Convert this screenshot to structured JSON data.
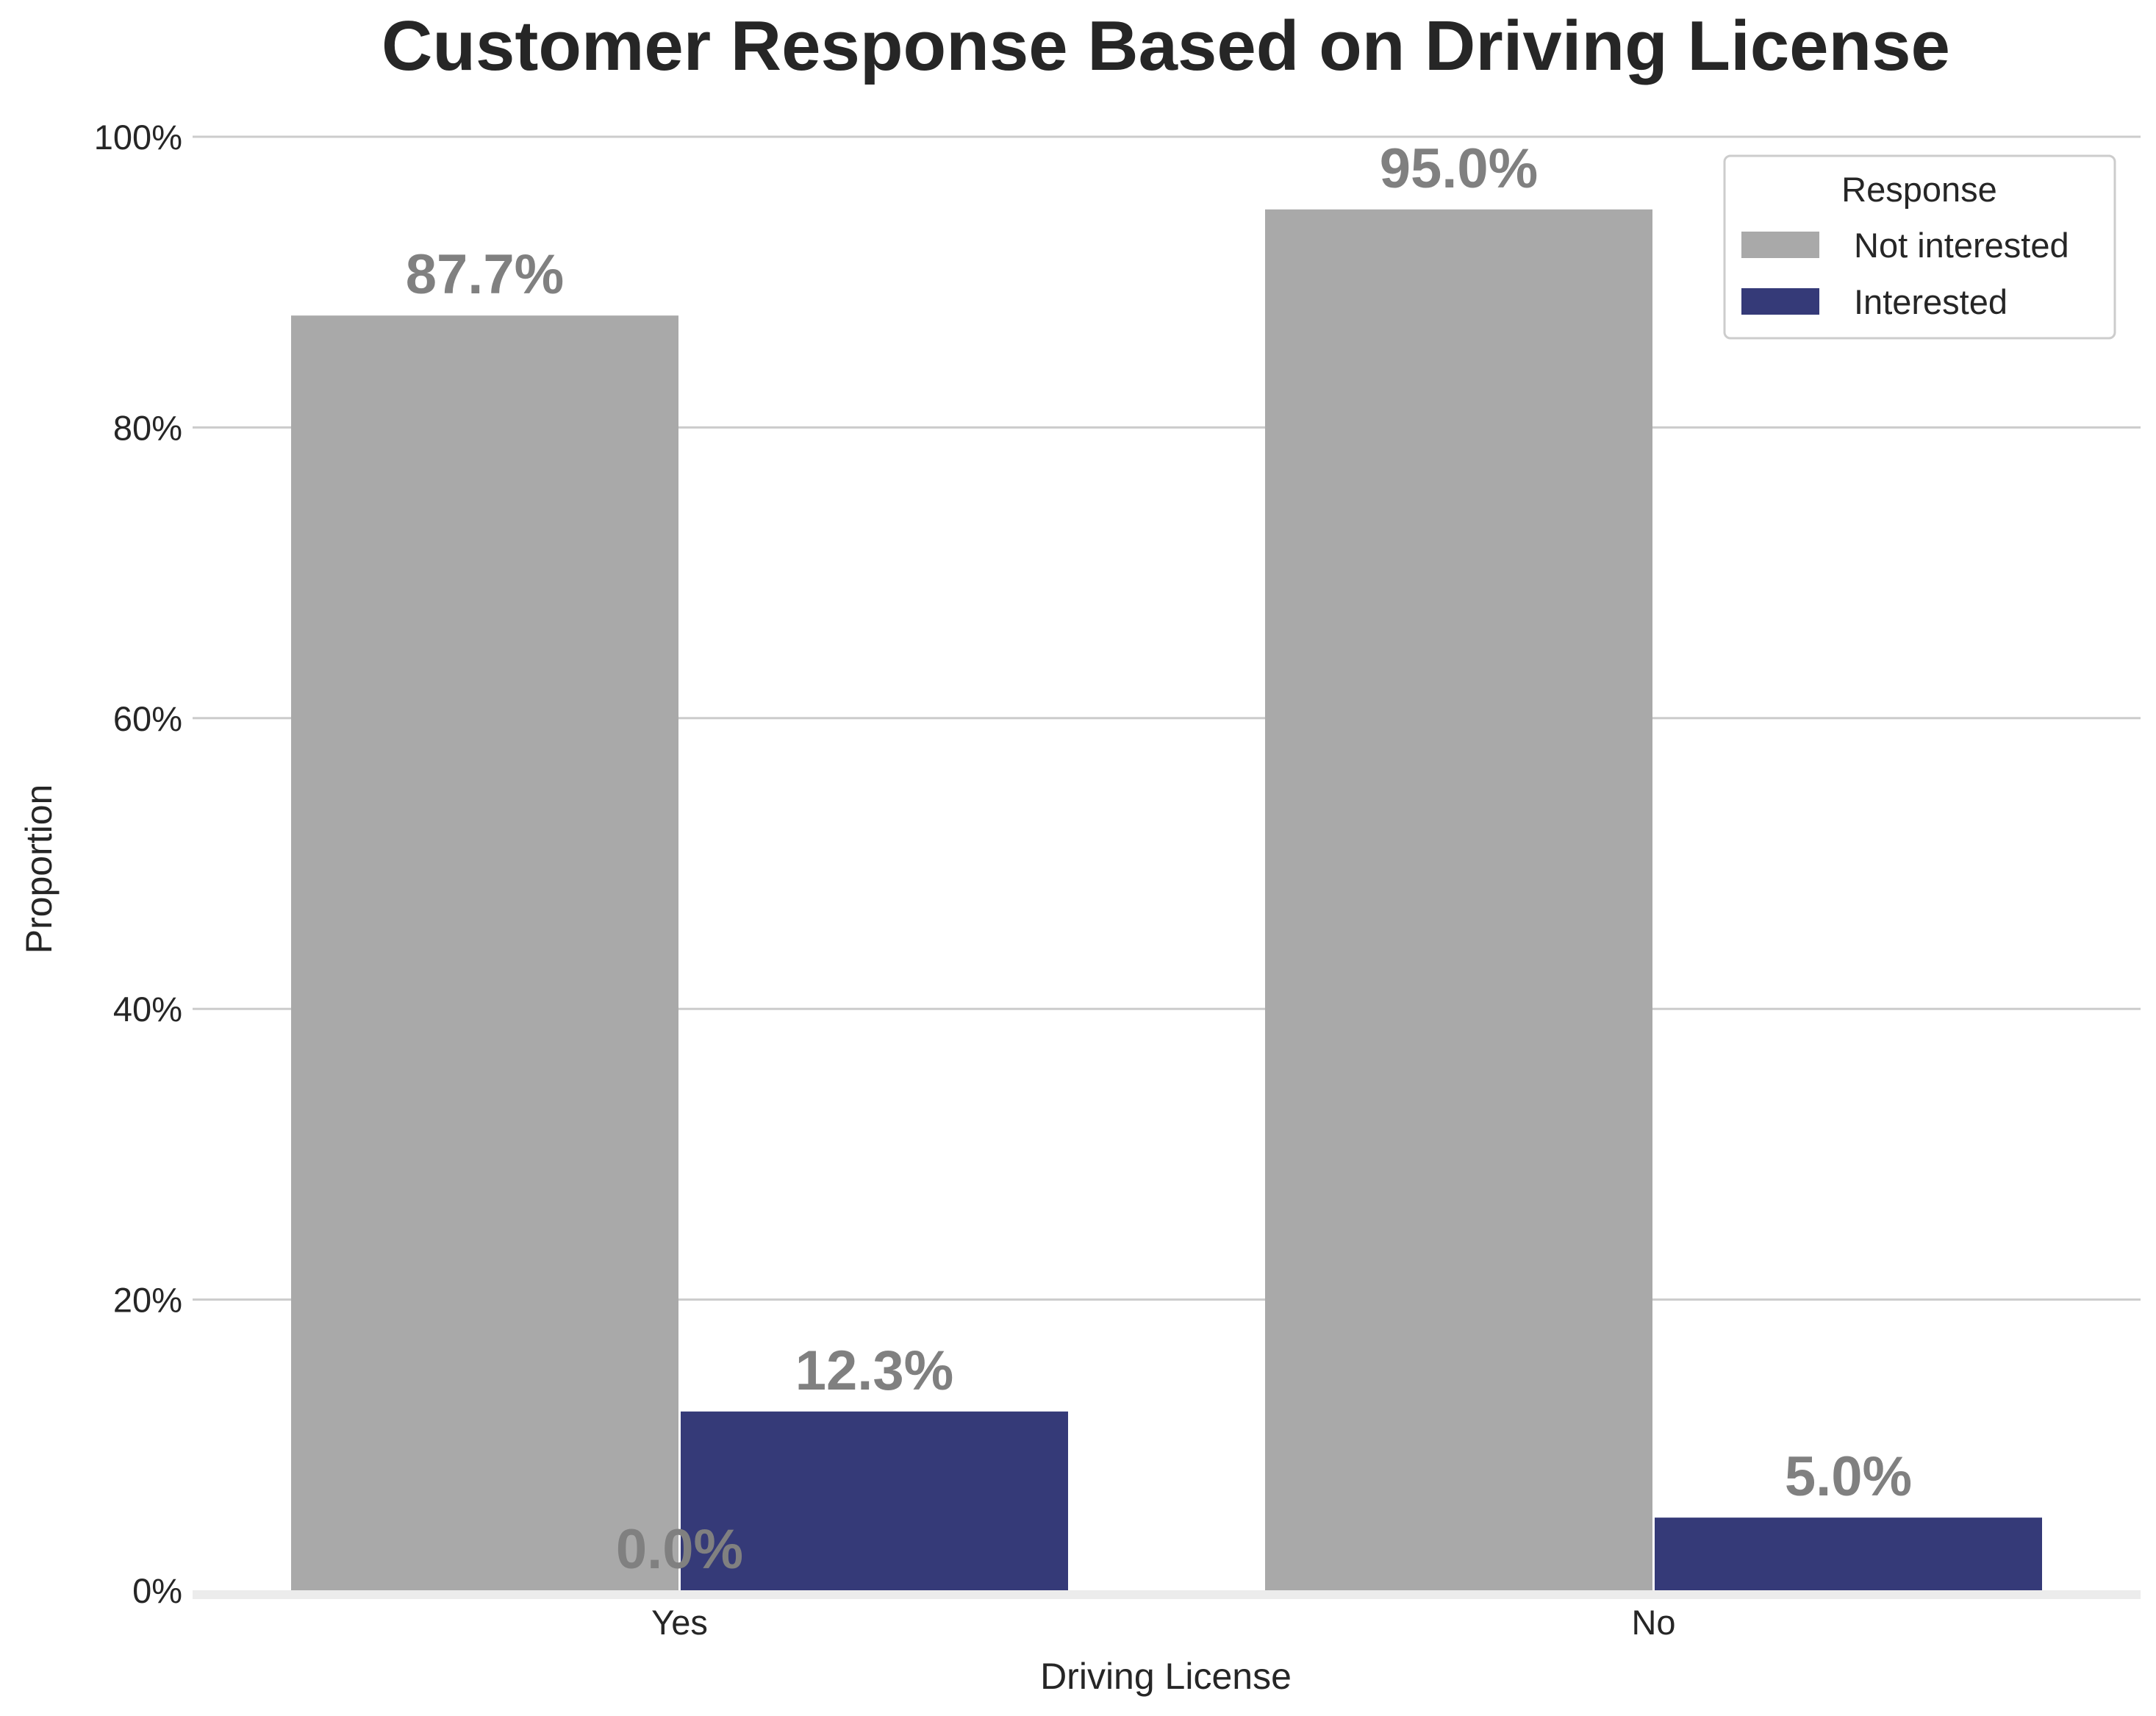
{
  "chart_data": {
    "type": "bar",
    "title": "Customer Response Based on Driving License",
    "xlabel": "Driving License",
    "ylabel": "Proportion",
    "categories": [
      "Yes",
      "No"
    ],
    "series": [
      {
        "name": "Not interested",
        "color": "#a9a9a9",
        "values": [
          87.7,
          95.0
        ],
        "labels": [
          "87.7%",
          "95.0%"
        ]
      },
      {
        "name": "Interested",
        "color": "#353a78",
        "values": [
          12.3,
          5.0
        ],
        "labels": [
          "12.3%",
          "5.0%"
        ]
      }
    ],
    "extra_labels": [
      {
        "text": "0.0%",
        "category": "Yes",
        "value": 0.0
      }
    ],
    "ylim": [
      0,
      100
    ],
    "yticks": [
      0,
      20,
      40,
      60,
      80,
      100
    ],
    "ytick_labels": [
      "0%",
      "20%",
      "40%",
      "60%",
      "80%",
      "100%"
    ],
    "grid": "horizontal",
    "legend": {
      "title": "Response",
      "placement": "top-right"
    }
  }
}
